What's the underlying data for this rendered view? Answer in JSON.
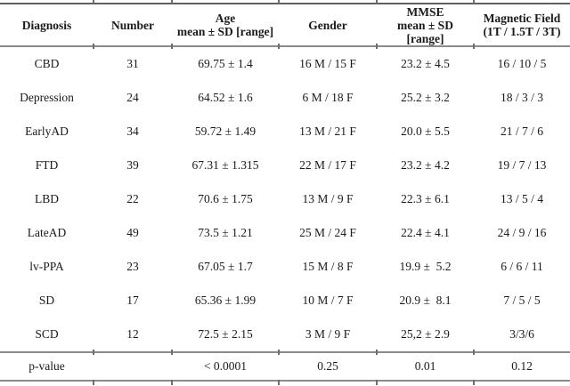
{
  "page": {
    "background_color": "#ffffff",
    "text_color": "#1a1a1a",
    "rule_color": "#8c8c8c",
    "top_rule_color": "#5f5f5f"
  },
  "table": {
    "headers": [
      "Diagnosis",
      "Number",
      "Age\nmean ± SD [range]",
      "Gender",
      "MMSE\nmean ± SD\n[range]",
      "Magnetic Field\n(1T / 1.5T / 3T)"
    ],
    "rows": [
      {
        "cells": [
          "CBD",
          "31",
          "69.75 ± 1.4",
          "16 M / 15 F",
          "23.2 ± 4.5",
          "16 / 10 / 5"
        ]
      },
      {
        "cells": [
          "Depression",
          "24",
          "64.52 ± 1.6",
          "6 M / 18 F",
          "25.2 ± 3.2",
          "18 / 3 / 3"
        ]
      },
      {
        "cells": [
          "EarlyAD",
          "34",
          "59.72 ± 1.49",
          "13 M / 21 F",
          "20.0 ± 5.5",
          "21 / 7 / 6"
        ]
      },
      {
        "cells": [
          "FTD",
          "39",
          "67.31 ± 1.315",
          "22 M / 17 F",
          "23.2 ± 4.2",
          "19 / 7 / 13"
        ]
      },
      {
        "cells": [
          "LBD",
          "22",
          "70.6 ± 1.75",
          "13 M / 9 F",
          "22.3 ± 6.1",
          "13 / 5 / 4"
        ]
      },
      {
        "cells": [
          "LateAD",
          "49",
          "73.5 ± 1.21",
          "25 M / 24 F",
          "22.4 ± 4.1",
          "24 / 9 / 16"
        ]
      },
      {
        "cells": [
          "lv-PPA",
          "23",
          "67.05 ± 1.7",
          "15 M / 8 F",
          "19.9 ±  5.2",
          "6 / 6 / 11"
        ]
      },
      {
        "cells": [
          "SD",
          "17",
          "65.36 ± 1.99",
          "10 M / 7 F",
          "20.9 ±  8.1",
          "7 / 5 / 5"
        ]
      },
      {
        "cells": [
          "SCD",
          "12",
          "72.5 ± 2.15",
          "3 M / 9 F",
          "25,2 ± 2.9",
          "3/3/6"
        ]
      }
    ],
    "p_value_row": {
      "cells": [
        "p-value",
        "",
        "< 0.0001",
        "0.25",
        "0.01",
        "0.12"
      ]
    }
  }
}
